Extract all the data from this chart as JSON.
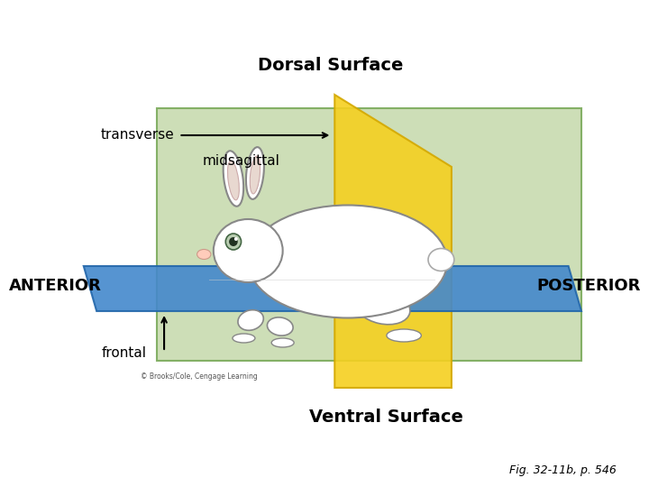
{
  "title": "",
  "background_color": "#ffffff",
  "fig_width": 7.2,
  "fig_height": 5.4,
  "dpi": 100,
  "labels": {
    "dorsal_surface": "Dorsal Surface",
    "ventral_surface": "Ventral Surface",
    "transverse": "transverse",
    "midsagittal": "midsagittal",
    "anterior": "ANTERIOR",
    "posterior": "POSTERIOR",
    "frontal": "frontal",
    "caption": "Fig. 32-11b, p. 546",
    "copyright": "© Brooks/Cole, Cengage Learning"
  },
  "colors": {
    "green_plane": "#c8dbb0",
    "green_plane_edge": "#7aaa5a",
    "yellow_plane": "#f5d020",
    "yellow_plane_edge": "#d4a800",
    "blue_plane": "#4488cc",
    "blue_plane_edge": "#2266aa",
    "arrow_color": "#000000",
    "text_color": "#000000"
  }
}
